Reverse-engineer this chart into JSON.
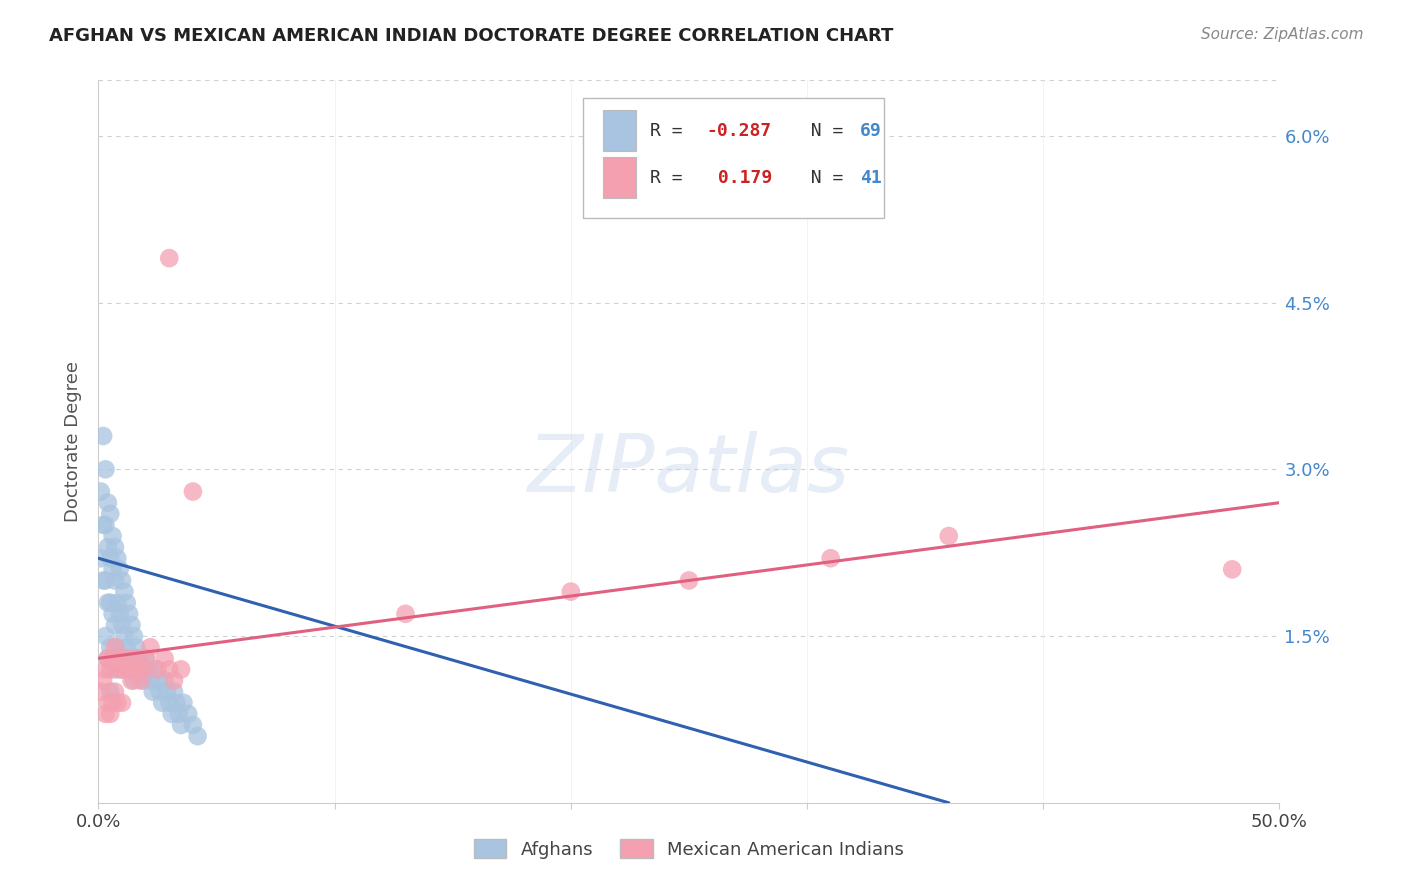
{
  "title": "AFGHAN VS MEXICAN AMERICAN INDIAN DOCTORATE DEGREE CORRELATION CHART",
  "source": "Source: ZipAtlas.com",
  "ylabel": "Doctorate Degree",
  "xlim": [
    0.0,
    0.5
  ],
  "ylim": [
    0.0,
    0.065
  ],
  "y_tick_vals": [
    0.015,
    0.03,
    0.045,
    0.06
  ],
  "y_tick_labels": [
    "1.5%",
    "3.0%",
    "4.5%",
    "6.0%"
  ],
  "x_tick_vals": [
    0.0,
    0.1,
    0.2,
    0.3,
    0.4,
    0.5
  ],
  "x_tick_labels": [
    "0.0%",
    "",
    "",
    "",
    "",
    "50.0%"
  ],
  "afghan_color": "#a8c4e0",
  "mexican_color": "#f4a0b0",
  "afghan_R": -0.287,
  "afghan_N": 69,
  "mexican_R": 0.179,
  "mexican_N": 41,
  "watermark": "ZIPatlas",
  "background_color": "#ffffff",
  "grid_color": "#d0d0d0",
  "afghan_line_color": "#3060b0",
  "mexican_line_color": "#e06080",
  "afghan_line_x0": 0.0,
  "afghan_line_x1": 0.36,
  "afghan_line_y0": 0.022,
  "afghan_line_y1": 0.0,
  "mexican_line_x0": 0.0,
  "mexican_line_x1": 0.5,
  "mexican_line_y0": 0.013,
  "mexican_line_y1": 0.027,
  "legend_R1": "R = -0.287",
  "legend_N1": "N = 69",
  "legend_R2": "R =  0.179",
  "legend_N2": "N = 41",
  "r_color": "#cc2222",
  "n_color": "#4488cc",
  "label_afghans": "Afghans",
  "label_mexican": "Mexican American Indians"
}
